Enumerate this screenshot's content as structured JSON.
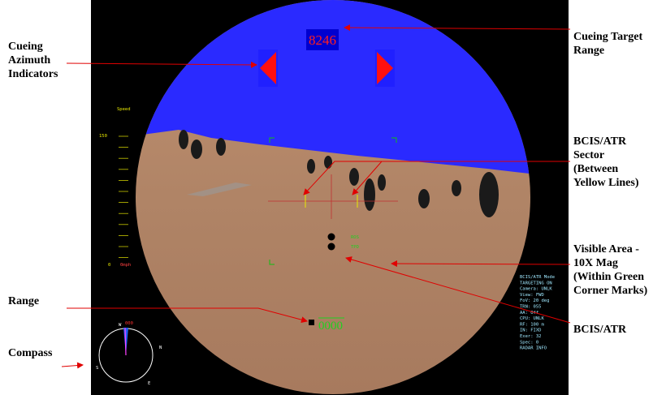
{
  "screen": {
    "target_range": "8246",
    "range_readout": "0000",
    "speed": {
      "label": "Speed",
      "max": "150",
      "min": "0",
      "current": "0mph"
    },
    "atr_labels": [
      "ROS",
      "TPD"
    ],
    "compass": {
      "heading": "000",
      "n": "N",
      "e": "E",
      "s": "S",
      "w": "W"
    },
    "status_lines": [
      "BCIS/ATR Mode",
      "TARGETING ON",
      "Camera: UNLK",
      "View: FWD",
      "FoV: 20 deg",
      "TRN: 055",
      "AA: Off",
      "CPU: UNLK",
      "RF: 100 m",
      "IN: FIXD",
      "Exer: 32",
      "Spec: 0",
      "RADAR INFO"
    ]
  },
  "annotations": [
    {
      "lines": [
        "Cueing",
        "Azimuth",
        "Indicators"
      ]
    },
    {
      "lines": [
        "Range"
      ]
    },
    {
      "lines": [
        "Compass"
      ]
    },
    {
      "lines": [
        "Cueing Target",
        "Range"
      ]
    },
    {
      "lines": [
        "BCIS/ATR",
        "Sector",
        "(Between",
        "Yellow Lines)"
      ]
    },
    {
      "lines": [
        "Visible Area -",
        "10X  Mag",
        "(Within Green",
        "Corner Marks)"
      ]
    },
    {
      "lines": [
        "BCIS/ATR"
      ]
    }
  ]
}
